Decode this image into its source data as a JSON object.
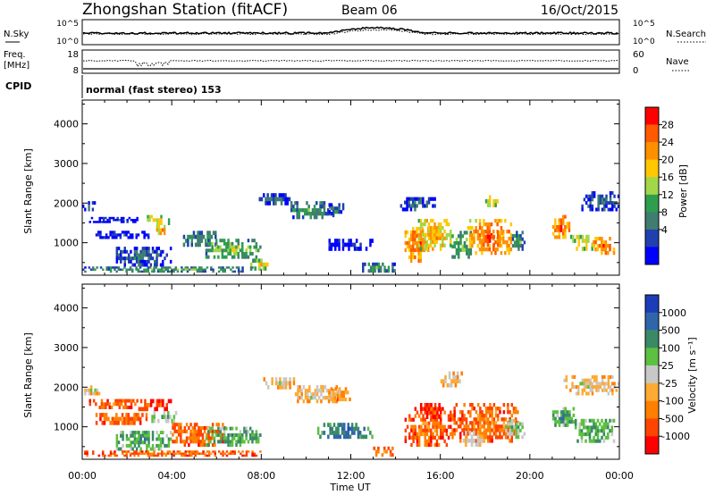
{
  "header": {
    "station": "Zhongshan Station (fitACF)",
    "beam": "Beam 06",
    "date": "16/Oct/2015"
  },
  "noise_panel": {
    "left_label": "N.Sky",
    "right_label": "N.Search",
    "left_ticks": [
      "10^5",
      "10^0"
    ],
    "right_ticks": [
      "10^5",
      "10^0"
    ]
  },
  "freq_panel": {
    "left_label_1": "Freq.",
    "left_label_2": "[MHz]",
    "left_ticks": [
      "18",
      "8"
    ],
    "right_label": "Nave",
    "right_ticks": [
      "60",
      "0"
    ]
  },
  "cpid": {
    "label": "CPID",
    "mode": "normal (fast stereo) 153"
  },
  "power_colorbar": {
    "title": "Power [dB]",
    "ticks": [
      "28",
      "24",
      "20",
      "16",
      "12",
      "8",
      "4"
    ],
    "colors": [
      "#ff0000",
      "#ff5a00",
      "#ff9000",
      "#ffc800",
      "#a4d64a",
      "#2e9e4e",
      "#3f7d70",
      "#2040b0",
      "#0000ff"
    ]
  },
  "velocity_colorbar": {
    "title": "Velocity [m s⁻¹]",
    "ticks": [
      "1000",
      "500",
      "100",
      "25",
      "-25",
      "-100",
      "-500",
      "-1000"
    ],
    "colors": [
      "#1c3cb8",
      "#2f66a8",
      "#3a8a66",
      "#5cc040",
      "#c8c8c8",
      "#ffaa33",
      "#ff8000",
      "#ff4400",
      "#ff0000"
    ]
  },
  "chart_data": [
    {
      "type": "heatmap",
      "quantity": "Power",
      "ylabel": "Slant Range [km]",
      "ylim": [
        180,
        4600
      ],
      "yticks": [
        "1000",
        "2000",
        "3000",
        "4000"
      ],
      "xlim": [
        0,
        24
      ],
      "xticks": [
        "00:00",
        "04:00",
        "08:00",
        "12:00",
        "16:00",
        "20:00",
        "00:00"
      ],
      "blobs": [
        {
          "t0": 0.0,
          "t1": 0.6,
          "r0": 1800,
          "r1": 2050,
          "level": 6
        },
        {
          "t0": 0.3,
          "t1": 2.5,
          "r0": 1500,
          "r1": 1650,
          "level": 7
        },
        {
          "t0": 0.5,
          "t1": 3.0,
          "r0": 1100,
          "r1": 1300,
          "level": 7
        },
        {
          "t0": 2.8,
          "t1": 4.0,
          "r0": 1450,
          "r1": 1700,
          "level": 3
        },
        {
          "t0": 3.3,
          "t1": 3.8,
          "r0": 1200,
          "r1": 1450,
          "level": 2
        },
        {
          "t0": 1.5,
          "t1": 4.0,
          "r0": 400,
          "r1": 900,
          "level": 6
        },
        {
          "t0": 4.5,
          "t1": 6.0,
          "r0": 900,
          "r1": 1300,
          "level": 5
        },
        {
          "t0": 5.5,
          "t1": 8.0,
          "r0": 600,
          "r1": 1100,
          "level": 4
        },
        {
          "t0": 0.0,
          "t1": 8.0,
          "r0": 250,
          "r1": 400,
          "level": 5
        },
        {
          "t0": 7.5,
          "t1": 8.5,
          "r0": 300,
          "r1": 600,
          "level": 3
        },
        {
          "t0": 7.8,
          "t1": 9.3,
          "r0": 1950,
          "r1": 2250,
          "level": 6
        },
        {
          "t0": 9.3,
          "t1": 11.2,
          "r0": 1600,
          "r1": 2050,
          "level": 5
        },
        {
          "t0": 11.0,
          "t1": 11.7,
          "r0": 1650,
          "r1": 2000,
          "level": 6
        },
        {
          "t0": 11.0,
          "t1": 13.0,
          "r0": 800,
          "r1": 1100,
          "level": 7
        },
        {
          "t0": 12.5,
          "t1": 14.0,
          "r0": 250,
          "r1": 500,
          "level": 5
        },
        {
          "t0": 14.4,
          "t1": 15.5,
          "r0": 500,
          "r1": 1400,
          "level": 1
        },
        {
          "t0": 15.0,
          "t1": 16.5,
          "r0": 800,
          "r1": 1600,
          "level": 2
        },
        {
          "t0": 16.5,
          "t1": 17.4,
          "r0": 600,
          "r1": 1300,
          "level": 4
        },
        {
          "t0": 17.2,
          "t1": 19.2,
          "r0": 700,
          "r1": 1600,
          "level": 1
        },
        {
          "t0": 17.8,
          "t1": 18.8,
          "r0": 900,
          "r1": 1300,
          "level": 0
        },
        {
          "t0": 19.2,
          "t1": 19.8,
          "r0": 800,
          "r1": 1300,
          "level": 5
        },
        {
          "t0": 18.0,
          "t1": 18.6,
          "r0": 1900,
          "r1": 2200,
          "level": 3
        },
        {
          "t0": 14.2,
          "t1": 15.8,
          "r0": 1800,
          "r1": 2150,
          "level": 6
        },
        {
          "t0": 21.0,
          "t1": 21.8,
          "r0": 1100,
          "r1": 1700,
          "level": 1
        },
        {
          "t0": 21.8,
          "t1": 23.0,
          "r0": 800,
          "r1": 1200,
          "level": 3
        },
        {
          "t0": 22.8,
          "t1": 23.8,
          "r0": 700,
          "r1": 1150,
          "level": 1
        },
        {
          "t0": 22.3,
          "t1": 24.0,
          "r0": 1800,
          "r1": 2300,
          "level": 6
        }
      ]
    },
    {
      "type": "heatmap",
      "quantity": "Velocity",
      "ylabel": "Slant Range [km]",
      "ylim": [
        180,
        4600
      ],
      "yticks": [
        "1000",
        "2000",
        "3000",
        "4000"
      ],
      "xlim": [
        0,
        24
      ],
      "xticks": [
        "00:00",
        "04:00",
        "08:00",
        "12:00",
        "16:00",
        "20:00",
        "00:00"
      ],
      "blobs": [
        {
          "t0": 0.0,
          "t1": 0.8,
          "r0": 1800,
          "r1": 2050,
          "level": 4
        },
        {
          "t0": 0.3,
          "t1": 2.5,
          "r0": 1450,
          "r1": 1700,
          "level": 6
        },
        {
          "t0": 0.5,
          "t1": 3.0,
          "r0": 1050,
          "r1": 1350,
          "level": 6
        },
        {
          "t0": 2.5,
          "t1": 4.0,
          "r0": 1400,
          "r1": 1700,
          "level": 7
        },
        {
          "t0": 3.0,
          "t1": 4.5,
          "r0": 1100,
          "r1": 1400,
          "level": 3
        },
        {
          "t0": 1.5,
          "t1": 4.0,
          "r0": 400,
          "r1": 900,
          "level": 2
        },
        {
          "t0": 4.0,
          "t1": 6.5,
          "r0": 500,
          "r1": 1100,
          "level": 6
        },
        {
          "t0": 5.5,
          "t1": 8.0,
          "r0": 500,
          "r1": 1000,
          "level": 2
        },
        {
          "t0": 0.0,
          "t1": 8.0,
          "r0": 250,
          "r1": 400,
          "level": 6
        },
        {
          "t0": 8.0,
          "t1": 9.5,
          "r0": 1950,
          "r1": 2250,
          "level": 4
        },
        {
          "t0": 9.5,
          "t1": 11.5,
          "r0": 1600,
          "r1": 2050,
          "level": 4
        },
        {
          "t0": 11.0,
          "t1": 12.0,
          "r0": 1650,
          "r1": 2000,
          "level": 5
        },
        {
          "t0": 10.5,
          "t1": 13.0,
          "r0": 700,
          "r1": 1100,
          "level": 1
        },
        {
          "t0": 13.0,
          "t1": 14.0,
          "r0": 250,
          "r1": 500,
          "level": 6
        },
        {
          "t0": 14.4,
          "t1": 16.5,
          "r0": 500,
          "r1": 1500,
          "level": 6
        },
        {
          "t0": 15.0,
          "t1": 16.0,
          "r0": 1200,
          "r1": 1600,
          "level": 7
        },
        {
          "t0": 16.5,
          "t1": 19.5,
          "r0": 600,
          "r1": 1600,
          "level": 6
        },
        {
          "t0": 17.0,
          "t1": 18.0,
          "r0": 500,
          "r1": 900,
          "level": 4
        },
        {
          "t0": 18.8,
          "t1": 19.8,
          "r0": 700,
          "r1": 1200,
          "level": 3
        },
        {
          "t0": 16.0,
          "t1": 17.0,
          "r0": 2000,
          "r1": 2400,
          "level": 4
        },
        {
          "t0": 21.0,
          "t1": 22.0,
          "r0": 1000,
          "r1": 1500,
          "level": 2
        },
        {
          "t0": 22.0,
          "t1": 23.8,
          "r0": 600,
          "r1": 1200,
          "level": 2
        },
        {
          "t0": 21.5,
          "t1": 24.0,
          "r0": 1800,
          "r1": 2300,
          "level": 4
        }
      ]
    }
  ],
  "xlabel": "Time UT"
}
